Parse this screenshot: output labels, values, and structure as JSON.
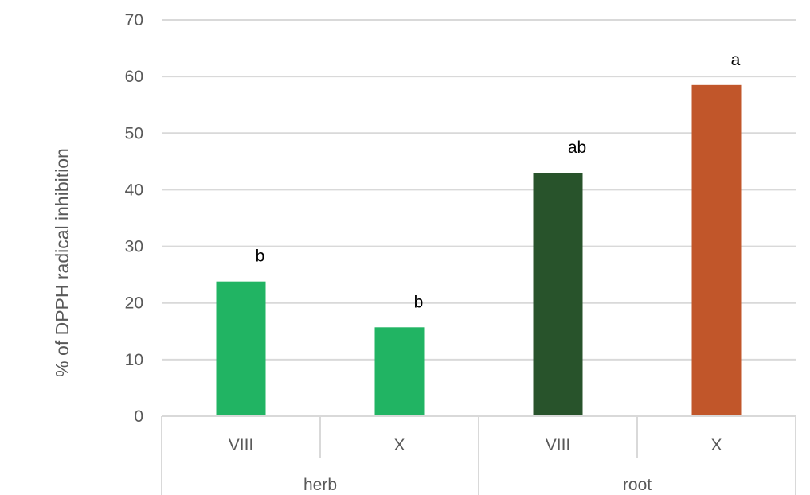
{
  "chart_data": {
    "type": "bar",
    "ylabel": "% of DPPH radical inhibition",
    "xlabel": "",
    "ylim": [
      0,
      70
    ],
    "yticks": [
      0,
      10,
      20,
      30,
      40,
      50,
      60,
      70
    ],
    "grid": true,
    "groups": [
      "herb",
      "root"
    ],
    "categories": [
      "VIII",
      "X",
      "VIII",
      "X"
    ],
    "values": [
      23.8,
      15.7,
      43.0,
      58.5
    ],
    "labels": [
      "b",
      "b",
      "ab",
      "a"
    ],
    "colors": [
      "#21b463",
      "#21b463",
      "#28532b",
      "#c1562a"
    ]
  }
}
